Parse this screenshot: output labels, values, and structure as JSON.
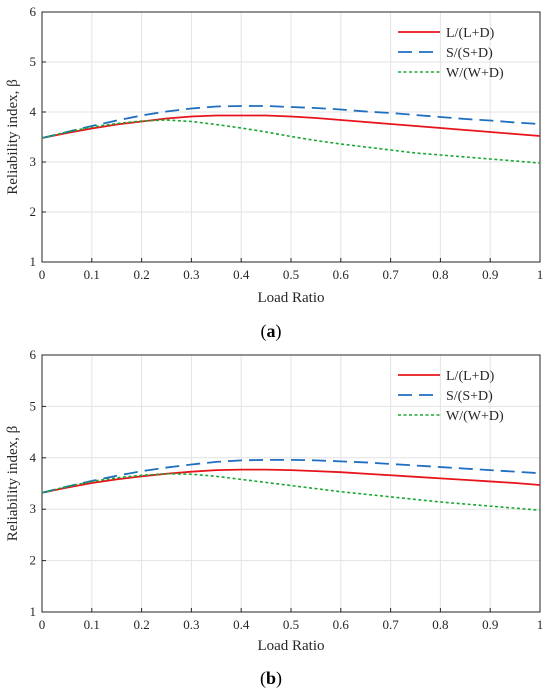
{
  "chart_data": [
    {
      "type": "line",
      "caption": {
        "open": "(",
        "letter": "a",
        "close": ")"
      },
      "xlabel": "Load Ratio",
      "ylabel": "Reliability index, β",
      "xlim": [
        0,
        1
      ],
      "ylim": [
        1,
        6
      ],
      "xticks": [
        0,
        0.1,
        0.2,
        0.3,
        0.4,
        0.5,
        0.6,
        0.7,
        0.8,
        0.9,
        1
      ],
      "yticks": [
        1,
        2,
        3,
        4,
        5,
        6
      ],
      "grid": true,
      "legend_position": "top-right",
      "series": [
        {
          "name": "L/(L+D)",
          "color": "#e8141c",
          "style": "solid",
          "x": [
            0,
            0.05,
            0.1,
            0.15,
            0.2,
            0.25,
            0.3,
            0.35,
            0.4,
            0.45,
            0.5,
            0.55,
            0.6,
            0.65,
            0.7,
            0.75,
            0.8,
            0.85,
            0.9,
            0.95,
            1
          ],
          "y": [
            3.48,
            3.58,
            3.67,
            3.75,
            3.81,
            3.87,
            3.91,
            3.93,
            3.93,
            3.93,
            3.91,
            3.88,
            3.84,
            3.8,
            3.76,
            3.72,
            3.68,
            3.64,
            3.6,
            3.56,
            3.52
          ]
        },
        {
          "name": "S/(S+D)",
          "color": "#1f6fc0",
          "style": "longdash",
          "x": [
            0,
            0.05,
            0.1,
            0.15,
            0.2,
            0.25,
            0.3,
            0.35,
            0.4,
            0.45,
            0.5,
            0.55,
            0.6,
            0.65,
            0.7,
            0.75,
            0.8,
            0.85,
            0.9,
            0.95,
            1
          ],
          "y": [
            3.48,
            3.6,
            3.72,
            3.83,
            3.93,
            4.01,
            4.07,
            4.11,
            4.12,
            4.12,
            4.1,
            4.08,
            4.05,
            4.01,
            3.98,
            3.94,
            3.9,
            3.86,
            3.83,
            3.79,
            3.76
          ]
        },
        {
          "name": "W/(W+D)",
          "color": "#1aa834",
          "style": "dotted",
          "x": [
            0,
            0.05,
            0.1,
            0.15,
            0.2,
            0.25,
            0.3,
            0.35,
            0.4,
            0.45,
            0.5,
            0.55,
            0.6,
            0.65,
            0.7,
            0.75,
            0.8,
            0.85,
            0.9,
            0.95,
            1
          ],
          "y": [
            3.48,
            3.6,
            3.7,
            3.77,
            3.82,
            3.84,
            3.81,
            3.75,
            3.68,
            3.6,
            3.51,
            3.43,
            3.36,
            3.3,
            3.24,
            3.18,
            3.14,
            3.1,
            3.06,
            3.02,
            2.98
          ]
        }
      ]
    },
    {
      "type": "line",
      "caption": {
        "open": "(",
        "letter": "b",
        "close": ")"
      },
      "xlabel": "Load Ratio",
      "ylabel": "Reliability index, β",
      "xlim": [
        0,
        1
      ],
      "ylim": [
        1,
        6
      ],
      "xticks": [
        0,
        0.1,
        0.2,
        0.3,
        0.4,
        0.5,
        0.6,
        0.7,
        0.8,
        0.9,
        1
      ],
      "yticks": [
        1,
        2,
        3,
        4,
        5,
        6
      ],
      "grid": true,
      "legend_position": "top-right",
      "series": [
        {
          "name": "L/(L+D)",
          "color": "#e8141c",
          "style": "solid",
          "x": [
            0,
            0.05,
            0.1,
            0.15,
            0.2,
            0.25,
            0.3,
            0.35,
            0.4,
            0.45,
            0.5,
            0.55,
            0.6,
            0.65,
            0.7,
            0.75,
            0.8,
            0.85,
            0.9,
            0.95,
            1
          ],
          "y": [
            3.32,
            3.42,
            3.51,
            3.58,
            3.64,
            3.69,
            3.73,
            3.76,
            3.77,
            3.77,
            3.76,
            3.74,
            3.72,
            3.69,
            3.66,
            3.63,
            3.6,
            3.57,
            3.54,
            3.51,
            3.47
          ]
        },
        {
          "name": "S/(S+D)",
          "color": "#1f6fc0",
          "style": "longdash",
          "x": [
            0,
            0.05,
            0.1,
            0.15,
            0.2,
            0.25,
            0.3,
            0.35,
            0.4,
            0.45,
            0.5,
            0.55,
            0.6,
            0.65,
            0.7,
            0.75,
            0.8,
            0.85,
            0.9,
            0.95,
            1
          ],
          "y": [
            3.32,
            3.44,
            3.55,
            3.65,
            3.74,
            3.81,
            3.87,
            3.92,
            3.95,
            3.96,
            3.96,
            3.95,
            3.93,
            3.91,
            3.88,
            3.85,
            3.82,
            3.79,
            3.76,
            3.73,
            3.7
          ]
        },
        {
          "name": "W/(W+D)",
          "color": "#1aa834",
          "style": "dotted",
          "x": [
            0,
            0.05,
            0.1,
            0.15,
            0.2,
            0.25,
            0.3,
            0.35,
            0.4,
            0.45,
            0.5,
            0.55,
            0.6,
            0.65,
            0.7,
            0.75,
            0.8,
            0.85,
            0.9,
            0.95,
            1
          ],
          "y": [
            3.32,
            3.44,
            3.54,
            3.61,
            3.66,
            3.69,
            3.68,
            3.64,
            3.58,
            3.52,
            3.46,
            3.4,
            3.34,
            3.29,
            3.24,
            3.19,
            3.14,
            3.1,
            3.06,
            3.02,
            2.98
          ]
        }
      ]
    }
  ]
}
